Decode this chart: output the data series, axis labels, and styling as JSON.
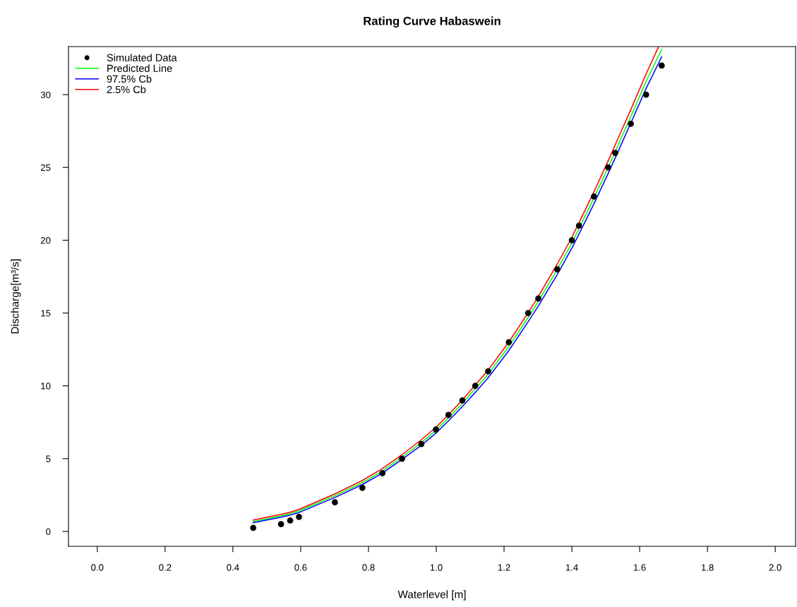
{
  "chart_data": {
    "type": "line",
    "title": "Rating Curve Habaswein",
    "xlabel": "Waterlevel [m]",
    "ylabel": "Discharge[m³/s]",
    "x": [
      0.46,
      0.542,
      0.569,
      0.595,
      0.701,
      0.782,
      0.841,
      0.899,
      0.956,
      0.999,
      1.036,
      1.077,
      1.115,
      1.153,
      1.214,
      1.271,
      1.301,
      1.357,
      1.4,
      1.421,
      1.465,
      1.507,
      1.528,
      1.574,
      1.619,
      1.665
    ],
    "series": [
      {
        "name": "Simulated Data",
        "type": "scatter",
        "color": "#000000",
        "marker": "circle",
        "values": [
          0.25,
          0.5,
          0.75,
          1,
          2,
          3,
          4,
          5,
          6,
          7,
          8,
          9,
          10,
          11,
          13,
          15,
          16,
          18,
          20,
          21,
          23,
          25,
          26,
          28,
          30,
          32
        ]
      },
      {
        "name": "Predicted Line",
        "color": "#00ff00",
        "values": [
          0.68,
          1.07,
          1.22,
          1.4,
          2.45,
          3.35,
          4.15,
          5.1,
          6.1,
          6.95,
          7.8,
          8.8,
          9.8,
          10.8,
          12.7,
          14.7,
          15.8,
          18.0,
          19.8,
          20.8,
          22.9,
          25.0,
          26.1,
          28.5,
          30.9,
          33.1
        ]
      },
      {
        "name": "97.5% Cb",
        "color": "#0000ff",
        "values": [
          0.6,
          0.98,
          1.13,
          1.3,
          2.33,
          3.22,
          4.0,
          4.95,
          5.92,
          6.75,
          7.6,
          8.58,
          9.55,
          10.55,
          12.42,
          14.4,
          15.48,
          17.65,
          19.45,
          20.42,
          22.5,
          24.58,
          25.66,
          28.05,
          30.42,
          32.6
        ]
      },
      {
        "name": "2.5% Cb",
        "color": "#ff0000",
        "x": [
          0.46,
          0.542,
          0.569,
          0.595,
          0.701,
          0.782,
          0.841,
          0.899,
          0.956,
          0.999,
          1.036,
          1.077,
          1.115,
          1.153,
          1.214,
          1.271,
          1.301,
          1.357,
          1.4,
          1.421,
          1.465,
          1.507,
          1.528,
          1.574,
          1.619,
          1.655
        ],
        "values": [
          0.78,
          1.17,
          1.32,
          1.51,
          2.58,
          3.5,
          4.32,
          5.27,
          6.3,
          7.15,
          8.02,
          9.03,
          10.06,
          11.08,
          13.0,
          15.02,
          16.13,
          18.37,
          20.2,
          21.2,
          23.32,
          25.44,
          26.56,
          28.98,
          31.42,
          33.25
        ]
      }
    ],
    "xlim": [
      -0.085,
      2.06
    ],
    "ylim": [
      -1.02,
      33.3
    ],
    "xticks": [
      {
        "value": 0,
        "label": "0.0"
      },
      0.2,
      0.4,
      0.6,
      0.8,
      {
        "value": 1,
        "label": "1.0"
      },
      1.2,
      1.4,
      1.6,
      1.8,
      {
        "value": 2,
        "label": "2.0"
      }
    ],
    "yticks": [
      0,
      5,
      10,
      15,
      20,
      25,
      30
    ],
    "grid": false,
    "legend": "top left"
  }
}
